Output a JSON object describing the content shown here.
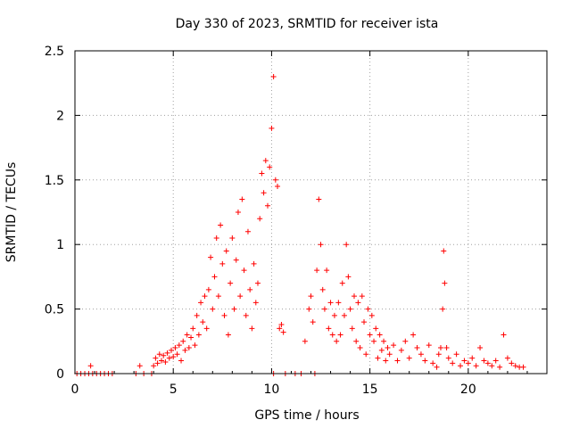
{
  "chart_data": {
    "type": "scatter",
    "title": "Day 330 of 2023, SRMTID for receiver ista",
    "xlabel": "GPS time / hours",
    "ylabel": "SRMTID / TECUs",
    "xlim": [
      0,
      24
    ],
    "ylim": [
      0,
      2.5
    ],
    "xticks": [
      0,
      5,
      10,
      15,
      20
    ],
    "xtick_labels": [
      "0",
      "5",
      "10",
      "15",
      "20"
    ],
    "yticks": [
      0,
      0.5,
      1,
      1.5,
      2,
      2.5
    ],
    "ytick_labels": [
      "0",
      "0.5",
      "1",
      "1.5",
      "2",
      "2.5"
    ],
    "grid": true,
    "marker": "+",
    "series": [
      {
        "name": "SRMTID",
        "color": "#ff0000",
        "points": [
          [
            0.1,
            0
          ],
          [
            0.3,
            0
          ],
          [
            0.5,
            0
          ],
          [
            0.7,
            0
          ],
          [
            0.8,
            0.06
          ],
          [
            0.9,
            0
          ],
          [
            1.1,
            0
          ],
          [
            1.3,
            0
          ],
          [
            1.5,
            0
          ],
          [
            1.7,
            0
          ],
          [
            1.9,
            0
          ],
          [
            3.1,
            0
          ],
          [
            3.3,
            0.06
          ],
          [
            3.5,
            0
          ],
          [
            3.9,
            0
          ],
          [
            4.0,
            0.06
          ],
          [
            4.1,
            0.12
          ],
          [
            4.2,
            0.08
          ],
          [
            4.3,
            0.15
          ],
          [
            4.4,
            0.1
          ],
          [
            4.5,
            0.14
          ],
          [
            4.6,
            0.09
          ],
          [
            4.7,
            0.16
          ],
          [
            4.8,
            0.12
          ],
          [
            4.9,
            0.18
          ],
          [
            5.0,
            0.13
          ],
          [
            5.1,
            0.2
          ],
          [
            5.2,
            0.15
          ],
          [
            5.3,
            0.22
          ],
          [
            5.4,
            0.1
          ],
          [
            5.5,
            0.25
          ],
          [
            5.6,
            0.18
          ],
          [
            5.7,
            0.3
          ],
          [
            5.8,
            0.2
          ],
          [
            5.9,
            0.28
          ],
          [
            6.0,
            0.35
          ],
          [
            6.1,
            0.22
          ],
          [
            6.2,
            0.45
          ],
          [
            6.3,
            0.3
          ],
          [
            6.4,
            0.55
          ],
          [
            6.5,
            0.4
          ],
          [
            6.6,
            0.6
          ],
          [
            6.7,
            0.35
          ],
          [
            6.8,
            0.65
          ],
          [
            6.9,
            0.9
          ],
          [
            7.0,
            0.5
          ],
          [
            7.1,
            0.75
          ],
          [
            7.2,
            1.05
          ],
          [
            7.3,
            0.6
          ],
          [
            7.4,
            1.15
          ],
          [
            7.5,
            0.85
          ],
          [
            7.6,
            0.45
          ],
          [
            7.7,
            0.95
          ],
          [
            7.8,
            0.3
          ],
          [
            7.9,
            0.7
          ],
          [
            8.0,
            1.05
          ],
          [
            8.1,
            0.5
          ],
          [
            8.2,
            0.88
          ],
          [
            8.3,
            1.25
          ],
          [
            8.4,
            0.6
          ],
          [
            8.5,
            1.35
          ],
          [
            8.6,
            0.8
          ],
          [
            8.7,
            0.45
          ],
          [
            8.8,
            1.1
          ],
          [
            8.9,
            0.65
          ],
          [
            9.0,
            0.35
          ],
          [
            9.1,
            0.85
          ],
          [
            9.2,
            0.55
          ],
          [
            9.3,
            0.7
          ],
          [
            9.4,
            1.2
          ],
          [
            9.5,
            1.55
          ],
          [
            9.6,
            1.4
          ],
          [
            9.7,
            1.65
          ],
          [
            9.8,
            1.3
          ],
          [
            9.9,
            1.6
          ],
          [
            10.0,
            1.9
          ],
          [
            10.1,
            2.3
          ],
          [
            10.2,
            1.5
          ],
          [
            10.3,
            1.45
          ],
          [
            10.4,
            0.35
          ],
          [
            10.5,
            0.38
          ],
          [
            10.6,
            0.32
          ],
          [
            10.1,
            0
          ],
          [
            10.7,
            0
          ],
          [
            11.2,
            0
          ],
          [
            11.5,
            0
          ],
          [
            11.7,
            0.25
          ],
          [
            11.9,
            0.5
          ],
          [
            12.0,
            0.6
          ],
          [
            12.1,
            0.4
          ],
          [
            12.2,
            0
          ],
          [
            12.3,
            0.8
          ],
          [
            12.4,
            1.35
          ],
          [
            12.5,
            1.0
          ],
          [
            12.6,
            0.65
          ],
          [
            12.7,
            0.5
          ],
          [
            12.8,
            0.8
          ],
          [
            12.9,
            0.35
          ],
          [
            13.0,
            0.55
          ],
          [
            13.1,
            0.3
          ],
          [
            13.2,
            0.45
          ],
          [
            13.3,
            0.25
          ],
          [
            13.4,
            0.55
          ],
          [
            13.5,
            0.3
          ],
          [
            13.6,
            0.7
          ],
          [
            13.7,
            0.45
          ],
          [
            13.8,
            1.0
          ],
          [
            13.9,
            0.75
          ],
          [
            14.0,
            0.5
          ],
          [
            14.1,
            0.35
          ],
          [
            14.2,
            0.6
          ],
          [
            14.3,
            0.25
          ],
          [
            14.4,
            0.55
          ],
          [
            14.5,
            0.2
          ],
          [
            14.6,
            0.6
          ],
          [
            14.7,
            0.4
          ],
          [
            14.8,
            0.15
          ],
          [
            14.9,
            0.5
          ],
          [
            15.0,
            0.3
          ],
          [
            15.1,
            0.45
          ],
          [
            15.2,
            0.25
          ],
          [
            15.3,
            0.35
          ],
          [
            15.4,
            0.12
          ],
          [
            15.5,
            0.3
          ],
          [
            15.6,
            0.18
          ],
          [
            15.7,
            0.25
          ],
          [
            15.8,
            0.1
          ],
          [
            15.9,
            0.2
          ],
          [
            16.0,
            0.15
          ],
          [
            16.2,
            0.22
          ],
          [
            16.4,
            0.1
          ],
          [
            16.6,
            0.18
          ],
          [
            16.8,
            0.25
          ],
          [
            17.0,
            0.12
          ],
          [
            17.2,
            0.3
          ],
          [
            17.4,
            0.2
          ],
          [
            17.6,
            0.15
          ],
          [
            17.8,
            0.1
          ],
          [
            18.0,
            0.22
          ],
          [
            18.2,
            0.08
          ],
          [
            18.4,
            0.05
          ],
          [
            18.5,
            0.15
          ],
          [
            18.6,
            0.2
          ],
          [
            18.7,
            0.5
          ],
          [
            18.75,
            0.95
          ],
          [
            18.8,
            0.7
          ],
          [
            18.9,
            0.2
          ],
          [
            19.0,
            0.12
          ],
          [
            19.2,
            0.08
          ],
          [
            19.4,
            0.15
          ],
          [
            19.6,
            0.06
          ],
          [
            19.8,
            0.1
          ],
          [
            20.0,
            0.08
          ],
          [
            20.2,
            0.12
          ],
          [
            20.4,
            0.06
          ],
          [
            20.6,
            0.2
          ],
          [
            20.8,
            0.1
          ],
          [
            21.0,
            0.08
          ],
          [
            21.2,
            0.06
          ],
          [
            21.4,
            0.1
          ],
          [
            21.6,
            0.05
          ],
          [
            21.8,
            0.3
          ],
          [
            22.0,
            0.12
          ],
          [
            22.2,
            0.08
          ],
          [
            22.4,
            0.06
          ],
          [
            22.6,
            0.05
          ],
          [
            22.8,
            0.05
          ]
        ]
      }
    ]
  }
}
